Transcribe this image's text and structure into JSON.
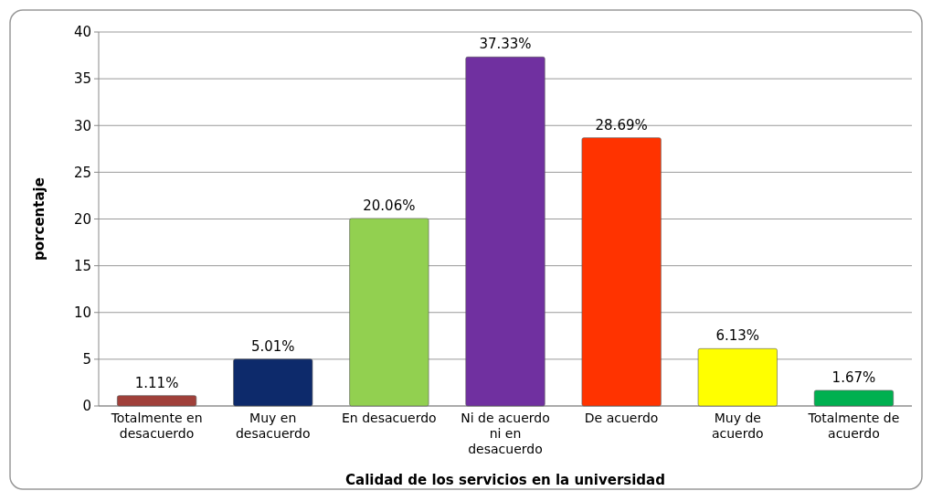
{
  "chart_data": {
    "type": "bar",
    "xlabel": "Calidad de los servicios en la universidad",
    "ylabel": "porcentaje",
    "categories": [
      "Totalmente en desacuerdo",
      "Muy en desacuerdo",
      "En desacuerdo",
      "Ni de acuerdo ni en desacuerdo",
      "De acuerdo",
      "Muy de acuerdo",
      "Totalmente de acuerdo"
    ],
    "values": [
      1.11,
      5.01,
      20.06,
      37.33,
      28.69,
      6.13,
      1.67
    ],
    "colors": [
      "#a0403a",
      "#0d2a6b",
      "#92d050",
      "#7030a0",
      "#ff3300",
      "#ffff00",
      "#00b050"
    ],
    "value_labels": [
      "1.11%",
      "5.01%",
      "20.06%",
      "37.33%",
      "28.69%",
      "6.13%",
      "1.67%"
    ],
    "ylim": [
      0,
      40
    ],
    "yticks": [
      0,
      5,
      10,
      15,
      20,
      25,
      30,
      35,
      40
    ],
    "grid": "y"
  }
}
